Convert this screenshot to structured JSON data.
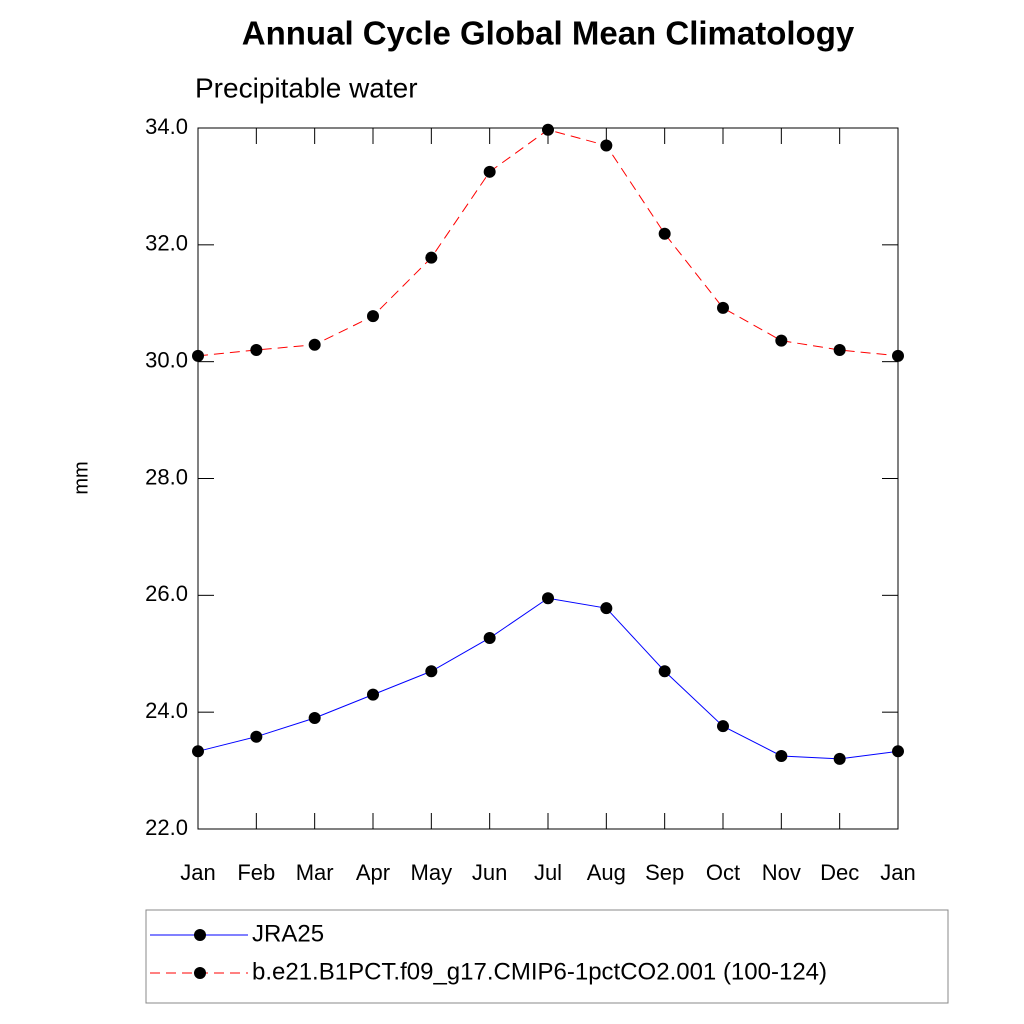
{
  "chart_data": {
    "type": "line",
    "title": "Annual Cycle Global Mean Climatology",
    "subtitle": "Precipitable water",
    "y_label": "mm",
    "categories": [
      "Jan",
      "Feb",
      "Mar",
      "Apr",
      "May",
      "Jun",
      "Jul",
      "Aug",
      "Sep",
      "Oct",
      "Nov",
      "Dec",
      "Jan"
    ],
    "series": [
      {
        "name": "JRA25",
        "color": "#0000ff",
        "line_style": "solid",
        "values": [
          23.33,
          23.58,
          23.9,
          24.3,
          24.7,
          25.27,
          25.95,
          25.78,
          24.7,
          23.76,
          23.25,
          23.2,
          23.33
        ]
      },
      {
        "name": "b.e21.B1PCT.f09_g17.CMIP6-1pctCO2.001 (100-124)",
        "color": "#ff0000",
        "line_style": "dashed",
        "values": [
          30.1,
          30.2,
          30.29,
          30.78,
          31.78,
          33.25,
          33.97,
          33.7,
          32.19,
          30.92,
          30.36,
          30.2,
          30.1
        ]
      }
    ],
    "ylim": [
      22,
      34
    ],
    "yticks": [
      {
        "value": 22,
        "label": "22.0"
      },
      {
        "value": 24,
        "label": "24.0"
      },
      {
        "value": 26,
        "label": "26.0"
      },
      {
        "value": 28,
        "label": "28.0"
      },
      {
        "value": 30,
        "label": "30.0"
      },
      {
        "value": 32,
        "label": "32.0"
      },
      {
        "value": 34,
        "label": "34.0"
      }
    ],
    "marker_color": "#000000"
  }
}
